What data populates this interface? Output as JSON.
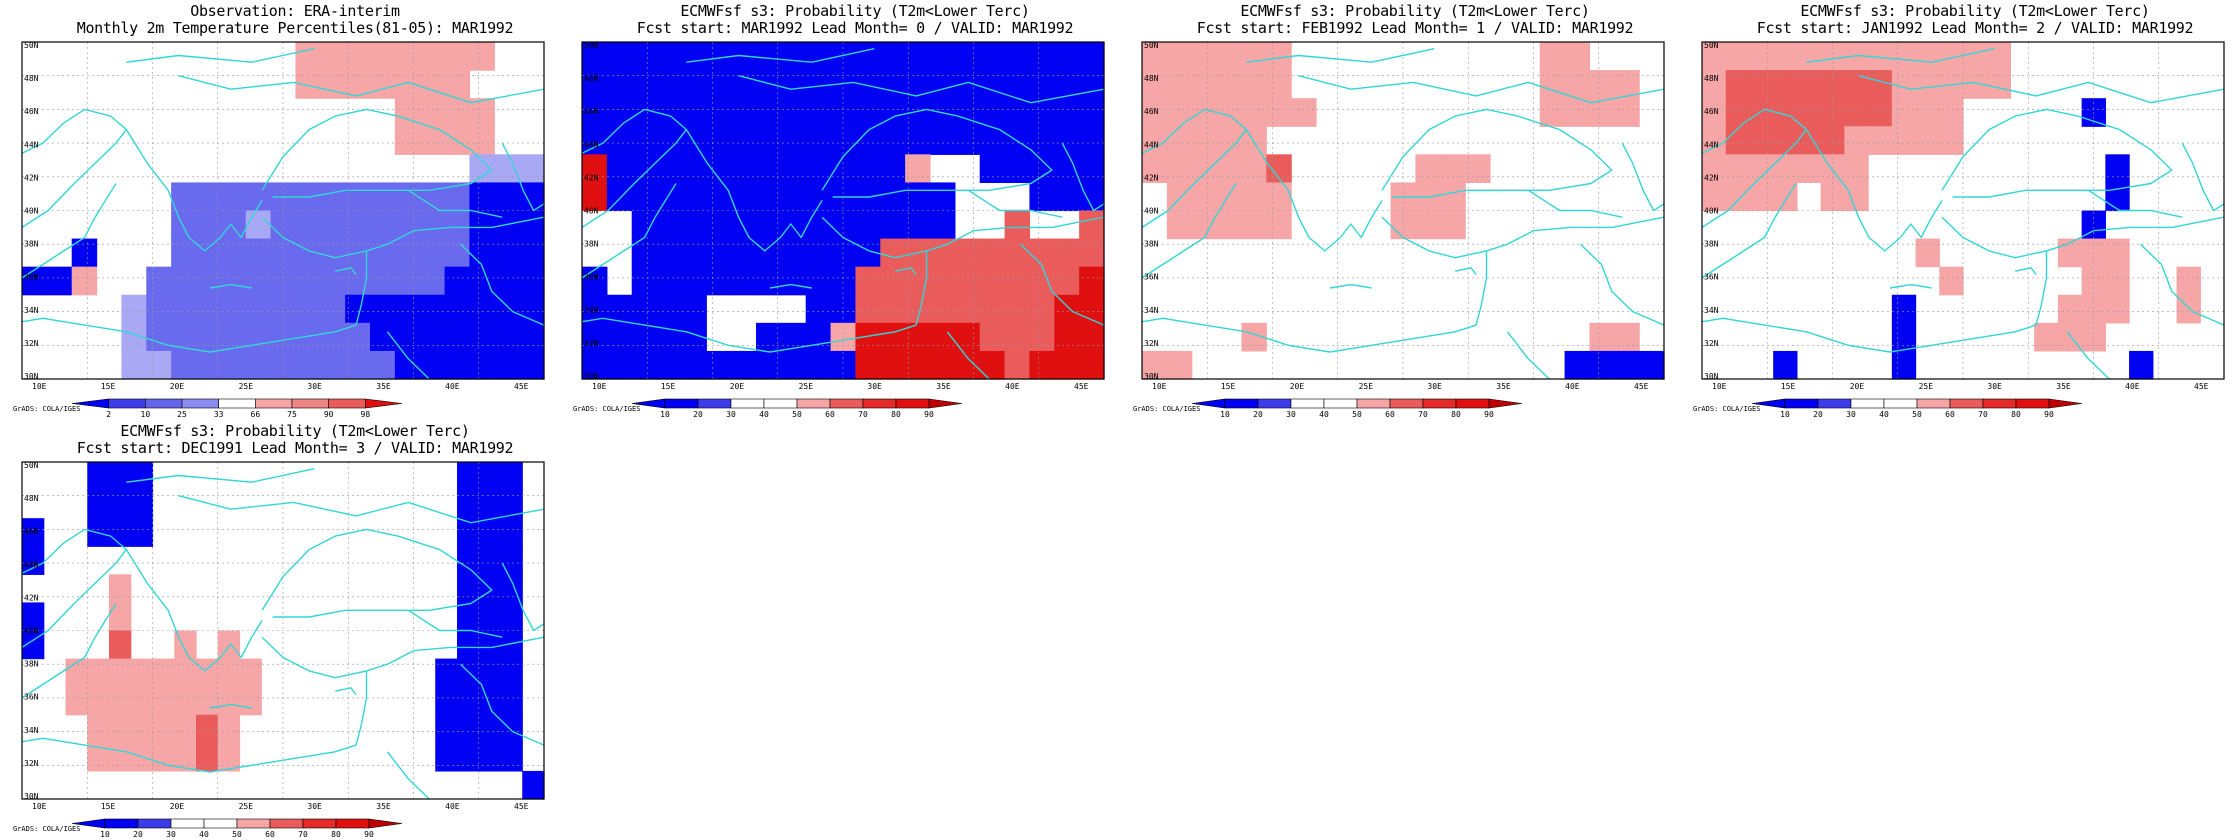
{
  "region": {
    "lon_ticks": [
      "10E",
      "15E",
      "20E",
      "25E",
      "30E",
      "35E",
      "40E",
      "45E"
    ],
    "lat_ticks": [
      "50N",
      "48N",
      "46N",
      "44N",
      "42N",
      "40N",
      "38N",
      "36N",
      "34N",
      "32N",
      "30N"
    ],
    "credit": "GrADS: COLA/IGES"
  },
  "colors": {
    "coast": "#33d6d6",
    "land_cells": {
      "b1": "#0000f2",
      "b2": "#3b3be8",
      "b3": "#6464ee",
      "b4": "#8a8af0",
      "b5": "#a8a8f4",
      "r1": "#f6a6a6",
      "r2": "#f08585",
      "r3": "#ea5c5c",
      "r4": "#e52a2a",
      "r5": "#e01010"
    }
  },
  "panels": [
    {
      "id": "observation",
      "title_line1": "Observation: ERA-interim",
      "title_line2": "Monthly 2m Temperature Percentiles(81-05): MAR1992",
      "colorbar_labels": [
        "2",
        "10",
        "25",
        "33",
        "66",
        "75",
        "90",
        "98"
      ],
      "colorbar_colors": [
        "#0000f2",
        "#3b3be8",
        "#6464ee",
        "#8a8af0",
        "#ffffff",
        "#f6a6a6",
        "#f08585",
        "#ea5c5c",
        "#e01010"
      ]
    },
    {
      "id": "lead0",
      "title_line1": "ECMWFsf s3: Probability (T2m<Lower Terc)",
      "title_line2": "Fcst start: MAR1992  Lead Month= 0 / VALID: MAR1992",
      "colorbar_labels": [
        "10",
        "20",
        "30",
        "40",
        "50",
        "60",
        "70",
        "80",
        "90"
      ],
      "colorbar_colors": [
        "#0000f2",
        "#0000f2",
        "#3b3be8",
        "#ffffff",
        "#ffffff",
        "#f6a6a6",
        "#ea5c5c",
        "#e52a2a",
        "#e01010",
        "#c00000"
      ]
    },
    {
      "id": "lead1",
      "title_line1": "ECMWFsf s3: Probability (T2m<Lower Terc)",
      "title_line2": "Fcst start: FEB1992  Lead Month= 1 / VALID: MAR1992",
      "colorbar_labels": [
        "10",
        "20",
        "30",
        "40",
        "50",
        "60",
        "70",
        "80",
        "90"
      ],
      "colorbar_colors": [
        "#0000f2",
        "#0000f2",
        "#3b3be8",
        "#ffffff",
        "#ffffff",
        "#f6a6a6",
        "#ea5c5c",
        "#e52a2a",
        "#e01010",
        "#c00000"
      ]
    },
    {
      "id": "lead2",
      "title_line1": "ECMWFsf s3: Probability (T2m<Lower Terc)",
      "title_line2": "Fcst start: JAN1992  Lead Month= 2 / VALID: MAR1992",
      "colorbar_labels": [
        "10",
        "20",
        "30",
        "40",
        "50",
        "60",
        "70",
        "80",
        "90"
      ],
      "colorbar_colors": [
        "#0000f2",
        "#0000f2",
        "#3b3be8",
        "#ffffff",
        "#ffffff",
        "#f6a6a6",
        "#ea5c5c",
        "#e52a2a",
        "#e01010",
        "#c00000"
      ]
    },
    {
      "id": "lead3",
      "title_line1": "ECMWFsf s3: Probability (T2m<Lower Terc)",
      "title_line2": "Fcst start: DEC1991  Lead Month= 3 / VALID: MAR1992",
      "colorbar_labels": [
        "10",
        "20",
        "30",
        "40",
        "50",
        "60",
        "70",
        "80",
        "90"
      ],
      "colorbar_colors": [
        "#0000f2",
        "#0000f2",
        "#3b3be8",
        "#ffffff",
        "#ffffff",
        "#f6a6a6",
        "#ea5c5c",
        "#e52a2a",
        "#e01010",
        "#c00000"
      ]
    }
  ],
  "grids": {
    "observation": [
      "...........rrrrrrrr..",
      "...........rrrrrrr...",
      "...............rrrr..",
      "...............rrrr..",
      "..................PPP",
      "......SSSSSSSSSSSSBBB",
      "......SSSPSSSSSSSSBBB",
      "..B...SSSSSSSSSSSSBBB",
      "BBr..SSSSSSSSSSSSBBBB",
      "....PSSSSSSSSBBBBBBBB",
      "....PSSSSSSSSSBBBBBBB",
      "....PPSSSSSSSSSBBBBBB"
    ],
    "lead0": [
      "BBBBBBBBBBBBBBBBBBBBB",
      "BBBBBBBBBBBBBBBBBBBBB",
      "BBBBBBBBBBBBBBBBBBBBB",
      "BBBBBBBBBBBBBBBBBBBBB",
      "DBBBBBBBBBBBBr..BBBBB",
      "DBBBBBBBBBBBBBB...BBB",
      "..BBBBBBBBBBBBB..R..R",
      "..BBBBBBBBBBRRRRRRRRR",
      "B.BBBBBBBBBRRRRRRRRRD",
      "BBBBB....BBRRRRRRRRDD",
      "BBBBB..BBBrDDDDDRRRDD",
      "BBBBBBBBBBBDDDDDDRDDD"
    ],
    "lead1": [
      "rrrrrr..........rr...",
      "rrrrrr..........rrrr.",
      "rrrrrrr.........rrrr.",
      "rrrrr...............",
      "rrrrrR.....rrr.......",
      ".rrrrr....rrr........",
      ".rrrrr....rrr........",
      ".....................",
      ".....................",
      ".....................",
      "....r.............rr",
      "rr...............BBBB"
    ],
    "lead2": [
      "rrrrrrrrrrrrr........",
      "rRRRRRRRrrrrr........",
      "rRRRRRRRrrr.....B....",
      "rRRRRRrrrrr..........",
      "rrrrrrr..........B...",
      "rrrr.rr..........B...",
      "................B.....",
      ".........r.....rrr...",
      "..........r.....rr..r",
      "........B......rrr..r",
      "........B.....rrr...",
      "...B....B.........B.."
    ],
    "lead3": [
      "...BBB..............BBB",
      "...BBB..............BBB",
      "B..BBB..............BBB",
      "B...................BBB",
      "....r...............BBB",
      "B...r...............BBB",
      "B...R..r.r..........BBB",
      "..rrrrrrrrr........BBBB",
      "..rrrrrrrrr........BBBB",
      "...rrrrrRr.........BBBB",
      "...rrrrrRr.........BBBB",
      ".......................B"
    ]
  }
}
